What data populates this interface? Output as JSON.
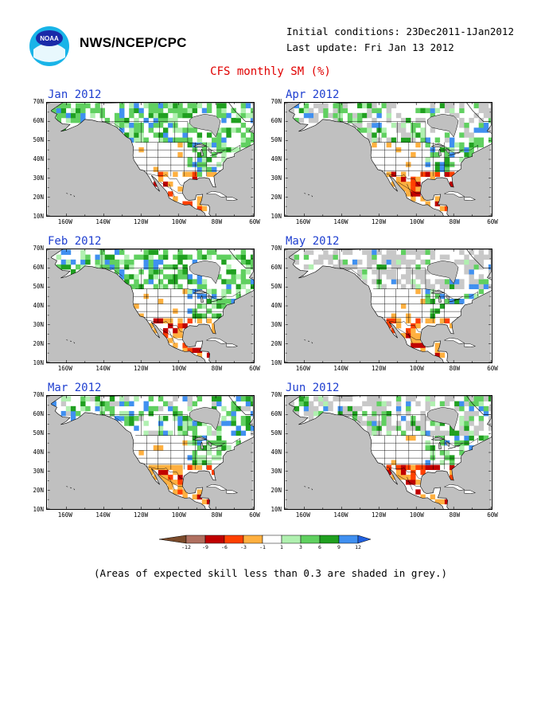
{
  "header": {
    "agency": "NWS/NCEP/CPC",
    "initial_conditions": "Initial conditions: 23Dec2011-1Jan2012",
    "last_update": "Last update: Fri Jan 13 2012",
    "title": "CFS monthly SM (%)",
    "logo_text": "NOAA"
  },
  "panels": [
    {
      "label": "Jan 2012",
      "col": 0,
      "row": 0,
      "grey": 0.0,
      "dry": 0.25,
      "wet": 0.35
    },
    {
      "label": "Apr 2012",
      "col": 1,
      "row": 0,
      "grey": 0.18,
      "dry": 0.35,
      "wet": 0.25
    },
    {
      "label": "Feb 2012",
      "col": 0,
      "row": 1,
      "grey": 0.0,
      "dry": 0.32,
      "wet": 0.32
    },
    {
      "label": "May 2012",
      "col": 1,
      "row": 1,
      "grey": 0.3,
      "dry": 0.35,
      "wet": 0.18
    },
    {
      "label": "Mar 2012",
      "col": 0,
      "row": 2,
      "grey": 0.05,
      "dry": 0.4,
      "wet": 0.28
    },
    {
      "label": "Jun 2012",
      "col": 1,
      "row": 2,
      "grey": 0.22,
      "dry": 0.3,
      "wet": 0.22
    }
  ],
  "axes": {
    "lat_labels": [
      "70N",
      "60N",
      "50N",
      "40N",
      "30N",
      "20N",
      "10N"
    ],
    "lon_labels": [
      "160W",
      "140W",
      "120W",
      "100W",
      "80W",
      "60W"
    ]
  },
  "colorbar": {
    "ticks": [
      "-12",
      "-9",
      "-6",
      "-3",
      "-1",
      "1",
      "3",
      "6",
      "9",
      "12"
    ],
    "colors": [
      "#7a4a2a",
      "#b07060",
      "#c00000",
      "#ff4000",
      "#ffb040",
      "#ffffff",
      "#b0f0b0",
      "#60d060",
      "#20a020",
      "#4090f0",
      "#2060e0"
    ]
  },
  "note": "(Areas of expected skill less than 0.3 are shaded in grey.)",
  "colors": {
    "title": "#e00000",
    "panel_label": "#1f3fd0",
    "ocean": "#c0c0c0",
    "land": "#ffffff",
    "skill_grey": "#c8c8c8"
  }
}
